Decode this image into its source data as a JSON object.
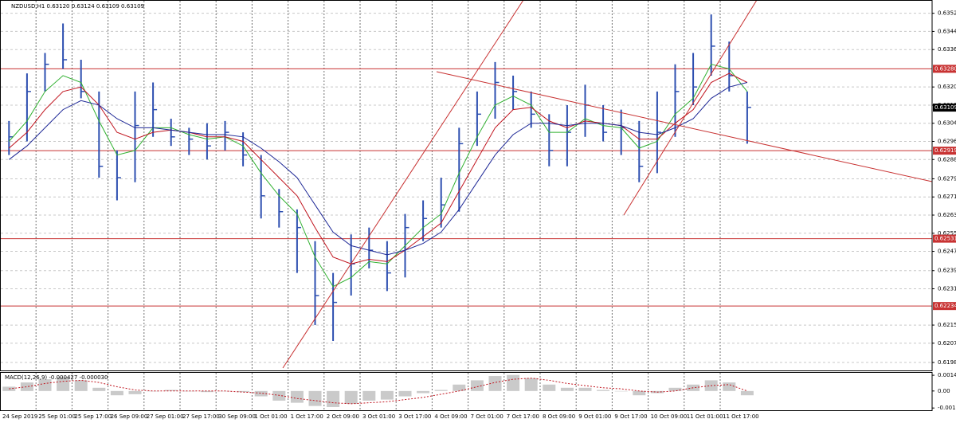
{
  "chart_data": [
    {
      "type": "ohlc",
      "title": "NZDUSD,H1  0.63120 0.63124 0.63109 0.63109",
      "categories": [
        "24 Sep 2019",
        null,
        "25 Sep 01:00",
        null,
        "25 Sep 17:00",
        null,
        "26 Sep 09:00",
        null,
        "27 Sep 01:00",
        null,
        "27 Sep 17:00",
        null,
        "30 Sep 09:00",
        null,
        "1 Oct 01:00",
        null,
        "1 Oct 17:00",
        null,
        "2 Oct 09:00",
        null,
        "3 Oct 01:00",
        null,
        "3 Oct 17:00",
        null,
        "4 Oct 09:00",
        null,
        "7 Oct 01:00",
        null,
        "7 Oct 17:00",
        null,
        "8 Oct 09:00",
        null,
        "9 Oct 01:00",
        null,
        "9 Oct 17:00",
        null,
        "10 Oct 09:00",
        null,
        "11 Oct 01:00",
        null,
        "11 Oct 17:00",
        null
      ],
      "high": [
        0.6305,
        0.6326,
        0.6335,
        0.6348,
        0.6332,
        0.6318,
        0.6292,
        0.6318,
        0.6322,
        0.6306,
        0.6302,
        0.6304,
        0.6305,
        0.63,
        0.629,
        0.6275,
        0.6266,
        0.6252,
        0.6238,
        0.6255,
        0.6258,
        0.6252,
        0.6264,
        0.627,
        0.628,
        0.6302,
        0.6318,
        0.6331,
        0.6325,
        0.6318,
        0.6308,
        0.6312,
        0.6321,
        0.6312,
        0.631,
        0.6305,
        0.6318,
        0.633,
        0.6335,
        0.6352,
        0.634,
        0.6318
      ],
      "low": [
        0.629,
        0.6296,
        0.6318,
        0.6328,
        0.6315,
        0.628,
        0.627,
        0.6278,
        0.6298,
        0.6294,
        0.629,
        0.6288,
        0.6292,
        0.6285,
        0.6262,
        0.6258,
        0.6238,
        0.6215,
        0.6208,
        0.6228,
        0.624,
        0.623,
        0.6236,
        0.6252,
        0.6258,
        0.6265,
        0.6294,
        0.6306,
        0.631,
        0.6302,
        0.6285,
        0.6285,
        0.6298,
        0.6296,
        0.629,
        0.6278,
        0.6282,
        0.6298,
        0.6312,
        0.6325,
        0.6318,
        0.6295
      ],
      "close": [
        0.6298,
        0.6318,
        0.633,
        0.6332,
        0.6318,
        0.6285,
        0.628,
        0.6303,
        0.631,
        0.6298,
        0.6297,
        0.6294,
        0.63,
        0.629,
        0.6272,
        0.6265,
        0.6258,
        0.6228,
        0.6225,
        0.6242,
        0.6248,
        0.6238,
        0.6258,
        0.6262,
        0.6268,
        0.6295,
        0.6308,
        0.6322,
        0.6318,
        0.6308,
        0.6292,
        0.63,
        0.6312,
        0.63,
        0.6302,
        0.6285,
        0.63,
        0.6318,
        0.632,
        0.6338,
        0.6325,
        0.6311
      ],
      "color": "#2d4fb0",
      "series": [
        {
          "color": "#2fb02f",
          "values": [
            0.6296,
            0.6305,
            0.6318,
            0.6325,
            0.6322,
            0.6305,
            0.629,
            0.6292,
            0.6302,
            0.6302,
            0.6299,
            0.6297,
            0.6298,
            0.6294,
            0.6282,
            0.6272,
            0.6264,
            0.6245,
            0.6232,
            0.6236,
            0.6243,
            0.6242,
            0.625,
            0.6258,
            0.6264,
            0.6282,
            0.6298,
            0.6312,
            0.6316,
            0.6312,
            0.63,
            0.63,
            0.6306,
            0.6303,
            0.6302,
            0.6293,
            0.6296,
            0.6308,
            0.6315,
            0.633,
            0.6328,
            0.6318
          ]
        },
        {
          "color": "#c0141e",
          "values": [
            0.6293,
            0.63,
            0.631,
            0.6318,
            0.632,
            0.6312,
            0.63,
            0.6297,
            0.63,
            0.6301,
            0.63,
            0.6298,
            0.6298,
            0.6296,
            0.6288,
            0.628,
            0.6272,
            0.6258,
            0.6245,
            0.6242,
            0.6244,
            0.6243,
            0.6248,
            0.6254,
            0.626,
            0.6274,
            0.6288,
            0.6302,
            0.631,
            0.6311,
            0.6305,
            0.6302,
            0.6305,
            0.6304,
            0.6303,
            0.6297,
            0.6297,
            0.6304,
            0.631,
            0.6322,
            0.6326,
            0.6322
          ]
        },
        {
          "color": "#1e2896",
          "values": [
            0.6288,
            0.6294,
            0.6302,
            0.631,
            0.6314,
            0.6312,
            0.6306,
            0.6302,
            0.6302,
            0.6301,
            0.63,
            0.6299,
            0.6299,
            0.6298,
            0.6293,
            0.6287,
            0.628,
            0.6268,
            0.6256,
            0.625,
            0.6248,
            0.6246,
            0.6248,
            0.6251,
            0.6256,
            0.6266,
            0.6278,
            0.629,
            0.6299,
            0.6304,
            0.6304,
            0.6303,
            0.6304,
            0.6304,
            0.6303,
            0.63,
            0.6299,
            0.6302,
            0.6306,
            0.6315,
            0.632,
            0.6322
          ]
        }
      ],
      "ylim": [
        0.6195,
        0.6358
      ],
      "yticks": [
        0.63525,
        0.63445,
        0.63365,
        {
          "value": 0.632,
          "label": "0.63200"
        },
        {
          "value": 0.6312,
          "label": "0.63120"
        },
        {
          "value": 0.6304,
          "label": "0.63040"
        },
        {
          "value": 0.6296,
          "label": "0.62960"
        },
        {
          "value": 0.6288,
          "label": "0.62880"
        },
        0.62795,
        0.62715,
        0.62635,
        0.62555,
        0.62475,
        {
          "value": 0.6239,
          "label": "0.62390"
        },
        {
          "value": 0.6231,
          "label": "0.62310"
        },
        {
          "value": 0.6215,
          "label": "0.62150"
        },
        {
          "value": 0.6207,
          "label": "0.62070"
        },
        0.61985
      ],
      "levels": [
        {
          "value": 0.6328,
          "label": "0.63280"
        },
        0.62919,
        0.62531,
        0.62234
      ],
      "level_color": "#c83232",
      "current_price": 0.63109,
      "grid": true
    },
    {
      "type": "macd",
      "title": "MACD(12,26,9) -0.000427 -0.000030",
      "values": [
        0.0004,
        0.0008,
        0.0011,
        0.0013,
        0.001,
        0.0003,
        -0.0004,
        -0.0003,
        0.0,
        0.0001,
        0.0,
        -0.0001,
        0.0,
        -0.0001,
        -0.0005,
        -0.0009,
        -0.0011,
        -0.0014,
        -0.0015,
        -0.0012,
        -0.0009,
        -0.0008,
        -0.0005,
        -0.0002,
        0.0001,
        0.0006,
        0.001,
        0.0014,
        0.0015,
        0.0012,
        0.0006,
        0.0003,
        0.0003,
        0.0001,
        0.0,
        -0.0004,
        -0.0002,
        0.0003,
        0.0006,
        0.001,
        0.0008,
        -0.0004
      ],
      "color": "#b4b4b4",
      "series": [
        {
          "color": "#c0141e",
          "values": [
            0.0002,
            0.0004,
            0.0007,
            0.0009,
            0.001,
            0.0008,
            0.0004,
            0.0001,
            0.0,
            0.0,
            0.0,
            0.0,
            0.0,
            -0.0001,
            -0.0002,
            -0.0004,
            -0.0007,
            -0.0009,
            -0.0011,
            -0.0012,
            -0.0011,
            -0.001,
            -0.0008,
            -0.0006,
            -0.0003,
            0.0,
            0.0004,
            0.0008,
            0.0011,
            0.0012,
            0.001,
            0.0007,
            0.0005,
            0.0003,
            0.0002,
            0.0,
            -0.0001,
            0.0,
            0.0003,
            0.0005,
            0.0006,
            0.0
          ]
        }
      ],
      "ylim": [
        -0.0018,
        0.0017
      ],
      "yticks": [
        0.00147,
        {
          "value": 0,
          "label": "0.00"
        },
        -0.00159
      ]
    }
  ]
}
